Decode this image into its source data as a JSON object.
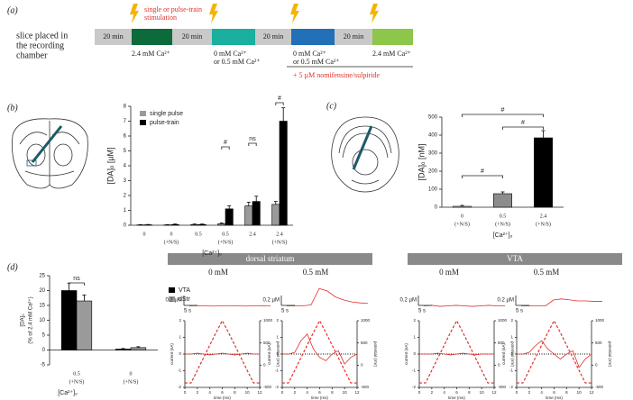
{
  "panel_a": {
    "label": "(a)",
    "start_text": [
      "slice placed in",
      "the recording",
      "chamber"
    ],
    "stimulation": [
      "single or pulse-train",
      "stimulation"
    ],
    "segments": [
      {
        "label": "20 min",
        "color": "#c9c9c9"
      },
      {
        "color": "#0c6a3b"
      },
      {
        "label": "20 min",
        "color": "#c9c9c9"
      },
      {
        "color": "#1aaf9e"
      },
      {
        "label": "20 min",
        "color": "#c9c9c9"
      },
      {
        "color": "#2170b8"
      },
      {
        "label": "20 min",
        "color": "#c9c9c9"
      },
      {
        "color": "#8cc64b"
      }
    ],
    "conditions": [
      [
        "2.4 mM Ca²⁺"
      ],
      [
        "0 mM Ca²⁺",
        "or 0.5 mM Ca²⁺"
      ],
      [
        "0 mM Ca²⁺",
        "or 0.5 mM Ca²⁺"
      ],
      [
        "2.4 mM Ca²⁺"
      ]
    ],
    "drug": "+ 5 µM nomifensine/sulpiride"
  },
  "panel_labels": [
    "(b)",
    "(c)",
    "(d)"
  ],
  "regions": [
    "dorsal striatum",
    "VTA"
  ],
  "condition_labels": [
    "0 mM",
    "0.5 mM",
    "0 mM",
    "0.5 mM"
  ],
  "chart_data": [
    {
      "type": "bar",
      "ylabel": "[DA]ₒ [µM]",
      "xlabel": "[Ca²⁺]ₒ",
      "categories": [
        [
          "0"
        ],
        [
          "0",
          "(+N/S)"
        ],
        [
          "0.5"
        ],
        [
          "0.5",
          "(+N/S)"
        ],
        [
          "2.4"
        ],
        [
          "2.4",
          "(+N/S)"
        ]
      ],
      "series": [
        {
          "name": "single pulse",
          "color": "#9a9a9a",
          "values": [
            0.02,
            0.02,
            0.05,
            0.1,
            1.3,
            1.4
          ],
          "errors": [
            0.02,
            0.02,
            0.03,
            0.05,
            0.25,
            0.2
          ]
        },
        {
          "name": "pulse-train",
          "color": "#000000",
          "values": [
            0.03,
            0.05,
            0.05,
            1.1,
            1.6,
            7.0
          ],
          "errors": [
            0.02,
            0.03,
            0.03,
            0.2,
            0.35,
            0.9
          ]
        }
      ],
      "ylim": [
        0,
        8
      ],
      "yticks": [
        0,
        1,
        2,
        3,
        4,
        5,
        6,
        7,
        8
      ],
      "legend": "top-left",
      "annotations": [
        "#",
        "ns",
        "#"
      ]
    },
    {
      "type": "bar",
      "ylabel": "[DA]ₒ [nM]",
      "xlabel": "[Ca²⁺]ₒ",
      "categories": [
        [
          "0",
          "(+N/S)"
        ],
        [
          "0.5",
          "(+N/S)"
        ],
        [
          "2.4",
          "(+N/S)"
        ]
      ],
      "values": [
        5,
        75,
        385
      ],
      "errors": [
        5,
        10,
        40
      ],
      "colors": [
        "#ffffff",
        "#8c8c8c",
        "#000000"
      ],
      "ylim": [
        0,
        500
      ],
      "yticks": [
        0,
        100,
        200,
        300,
        400,
        500
      ],
      "annotations": [
        "#",
        "#",
        "#"
      ]
    },
    {
      "type": "bar",
      "ylabel": [
        "[DA]ₒ",
        "(% of 2.4 mM Ca²⁺)"
      ],
      "xlabel": "[Ca²⁺]ₒ",
      "categories": [
        [
          "0.5",
          "(+N/S)"
        ],
        [
          "0",
          "(+N/S)"
        ]
      ],
      "series": [
        {
          "name": "VTA",
          "color": "#000000",
          "values": [
            20,
            0.3
          ],
          "errors": [
            2.5,
            0.2
          ]
        },
        {
          "name": "dStr",
          "color": "#9a9a9a",
          "values": [
            16.5,
            0.8
          ],
          "errors": [
            2,
            0.3
          ]
        }
      ],
      "ylim": [
        -5,
        25
      ],
      "yticks": [
        -5,
        0,
        5,
        10,
        15,
        20,
        25
      ],
      "legend": "right",
      "annotations": [
        "ns"
      ]
    },
    {
      "type": "trace",
      "x": [
        0,
        3,
        6,
        9,
        12,
        15,
        18,
        21,
        24,
        27,
        30
      ],
      "xlim": [
        0,
        30
      ],
      "ylim": [
        -0.1,
        0.5
      ],
      "scale_y": {
        "value": 0.2,
        "label": "0.2 µM"
      },
      "scale_x": {
        "value": 5,
        "label": "5 s"
      },
      "series": [
        {
          "color": "#e0302a",
          "values": [
            0,
            0.005,
            0,
            -0.005,
            0,
            0.005,
            0,
            -0.005,
            0,
            0.005,
            0
          ]
        }
      ]
    },
    {
      "type": "trace",
      "x": [
        0,
        3,
        6,
        9,
        12,
        15,
        18,
        21,
        24,
        27,
        30
      ],
      "xlim": [
        0,
        30
      ],
      "ylim": [
        -0.1,
        0.5
      ],
      "scale_y": {
        "value": 0.2,
        "label": "0.2 µM"
      },
      "scale_x": {
        "value": 5,
        "label": "5 s"
      },
      "series": [
        {
          "color": "#e0302a",
          "values": [
            0,
            0,
            0,
            0.02,
            0.35,
            0.3,
            0.18,
            0.12,
            0.08,
            0.06,
            0.05
          ]
        }
      ]
    },
    {
      "type": "trace",
      "x": [
        0,
        3,
        6,
        9,
        12,
        15,
        18,
        21,
        24,
        27,
        30
      ],
      "xlim": [
        0,
        30
      ],
      "ylim": [
        -0.1,
        0.5
      ],
      "scale_y": {
        "value": 0.2,
        "label": "0.2 µM"
      },
      "scale_x": {
        "value": 5,
        "label": "5 s"
      },
      "series": [
        {
          "color": "#e0302a",
          "values": [
            0,
            0.01,
            -0.01,
            0,
            0.01,
            0,
            -0.01,
            0,
            0.01,
            0,
            0
          ]
        }
      ]
    },
    {
      "type": "trace",
      "x": [
        0,
        3,
        6,
        9,
        12,
        15,
        18,
        21,
        24,
        27,
        30
      ],
      "xlim": [
        0,
        30
      ],
      "ylim": [
        -0.1,
        0.5
      ],
      "scale_y": {
        "value": 0.2,
        "label": "0.2 µM"
      },
      "scale_x": {
        "value": 5,
        "label": "5 s"
      },
      "series": [
        {
          "color": "#e0302a",
          "values": [
            0,
            0,
            0,
            0,
            0.12,
            0.14,
            0.12,
            0.1,
            0.1,
            0.09,
            0.09
          ]
        }
      ]
    },
    {
      "type": "voltammogram",
      "ylabel": "current (nA)",
      "y2label": "potential (mV)",
      "xlabel": "time (ms)",
      "x": [
        0,
        1,
        2,
        3,
        4,
        5,
        6,
        7,
        8,
        9,
        10,
        11,
        12
      ],
      "xlim": [
        0,
        12
      ],
      "xticks": [
        0,
        2,
        4,
        6,
        8,
        10,
        12
      ],
      "ylim": [
        -2,
        2
      ],
      "yticks": [
        -2,
        -1,
        0,
        1,
        2
      ],
      "y2lim": [
        -500,
        1000
      ],
      "y2ticks": [
        -500,
        0,
        500,
        1000
      ],
      "series": [
        {
          "color": "#e0302a",
          "dash": true,
          "axis": "y2",
          "values": [
            -400,
            -400,
            -117,
            167,
            450,
            733,
            1000,
            733,
            450,
            167,
            -117,
            -400,
            -400
          ]
        },
        {
          "color": "#e0302a",
          "values": [
            0,
            0,
            0.05,
            0,
            -0.05,
            0,
            0.05,
            0,
            -0.05,
            0,
            0.05,
            0,
            0
          ]
        }
      ]
    },
    {
      "type": "voltammogram",
      "ylabel": "current (nA)",
      "y2label": "potential (mV)",
      "xlabel": "time (ms)",
      "x": [
        0,
        1,
        2,
        3,
        4,
        5,
        6,
        7,
        8,
        9,
        10,
        11,
        12
      ],
      "xlim": [
        0,
        12
      ],
      "xticks": [
        0,
        2,
        4,
        6,
        8,
        10,
        12
      ],
      "ylim": [
        -2,
        2
      ],
      "yticks": [
        -2,
        -1,
        0,
        1,
        2
      ],
      "y2lim": [
        -500,
        1000
      ],
      "y2ticks": [
        -500,
        0,
        500,
        1000
      ],
      "series": [
        {
          "color": "#e0302a",
          "dash": true,
          "axis": "y2",
          "values": [
            -400,
            -400,
            -117,
            167,
            450,
            733,
            1000,
            733,
            450,
            167,
            -117,
            -400,
            -400
          ]
        },
        {
          "color": "#e0302a",
          "values": [
            0,
            0,
            0.1,
            0.8,
            1.2,
            0.3,
            -0.2,
            -0.4,
            0,
            0.2,
            -0.6,
            -0.2,
            0
          ]
        }
      ]
    },
    {
      "type": "voltammogram",
      "ylabel": "current (nA)",
      "y2label": "potential (mV)",
      "xlabel": "time (ms)",
      "x": [
        0,
        1,
        2,
        3,
        4,
        5,
        6,
        7,
        8,
        9,
        10,
        11,
        12
      ],
      "xlim": [
        0,
        12
      ],
      "xticks": [
        0,
        2,
        4,
        6,
        8,
        10,
        12
      ],
      "ylim": [
        -2,
        2
      ],
      "yticks": [
        -2,
        -1,
        0,
        1,
        2
      ],
      "y2lim": [
        -500,
        1000
      ],
      "y2ticks": [
        -500,
        0,
        500,
        1000
      ],
      "series": [
        {
          "color": "#e0302a",
          "dash": true,
          "axis": "y2",
          "values": [
            -400,
            -400,
            -117,
            167,
            450,
            733,
            1000,
            733,
            450,
            167,
            -117,
            -400,
            -400
          ]
        },
        {
          "color": "#e0302a",
          "values": [
            0,
            0,
            0,
            0.05,
            0,
            -0.05,
            0,
            0.05,
            0,
            -0.05,
            0,
            0,
            0
          ]
        }
      ]
    },
    {
      "type": "voltammogram",
      "ylabel": "current (nA)",
      "y2label": "potential (mV)",
      "xlabel": "time (ms)",
      "x": [
        0,
        1,
        2,
        3,
        4,
        5,
        6,
        7,
        8,
        9,
        10,
        11,
        12
      ],
      "xlim": [
        0,
        12
      ],
      "xticks": [
        0,
        2,
        4,
        6,
        8,
        10,
        12
      ],
      "ylim": [
        -2,
        2
      ],
      "yticks": [
        -2,
        -1,
        0,
        1,
        2
      ],
      "y2lim": [
        -500,
        1000
      ],
      "y2ticks": [
        -500,
        0,
        500,
        1000
      ],
      "series": [
        {
          "color": "#e0302a",
          "dash": true,
          "axis": "y2",
          "values": [
            -400,
            -400,
            -117,
            167,
            450,
            733,
            1000,
            733,
            450,
            167,
            -117,
            -400,
            -400
          ]
        },
        {
          "color": "#e0302a",
          "values": [
            0,
            0,
            0.1,
            0.5,
            0.8,
            0.3,
            0,
            -0.3,
            0,
            0.2,
            -0.8,
            -0.3,
            0
          ]
        }
      ]
    }
  ]
}
